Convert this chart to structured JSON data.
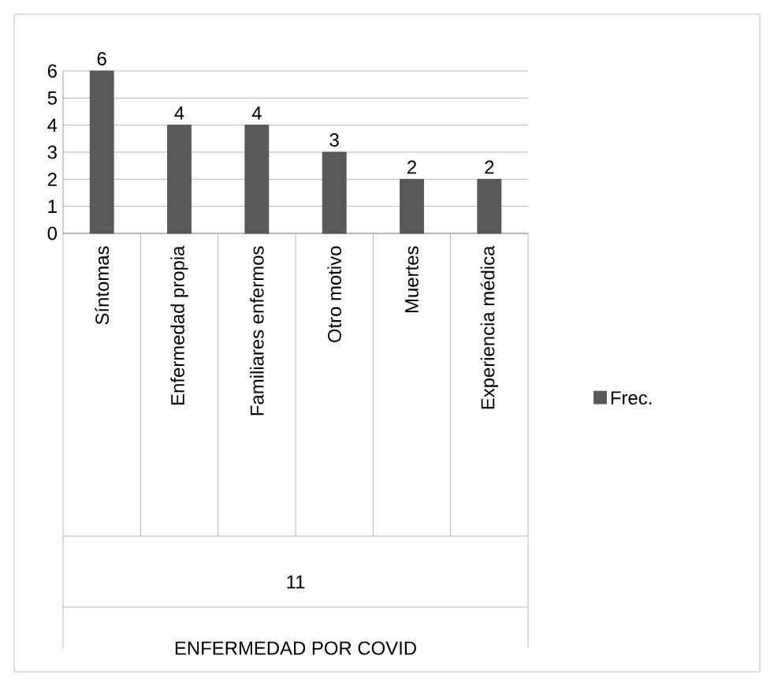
{
  "chart_data": {
    "type": "bar",
    "categories": [
      "Síntomas",
      "Enfermedad propia",
      "Familiares enfermos",
      "Otro motivo",
      "Muertes",
      "Experiencia médica"
    ],
    "series": [
      {
        "name": "Frec.",
        "color": "#595959",
        "values": [
          6,
          4,
          4,
          3,
          2,
          2
        ]
      }
    ],
    "ylim": [
      0,
      6
    ],
    "yticks": [
      0,
      1,
      2,
      3,
      4,
      5,
      6
    ],
    "grid": "y",
    "legend": "right",
    "data_labels": true,
    "annotations": [
      "11",
      "ENFERMEDAD POR COVID"
    ]
  }
}
